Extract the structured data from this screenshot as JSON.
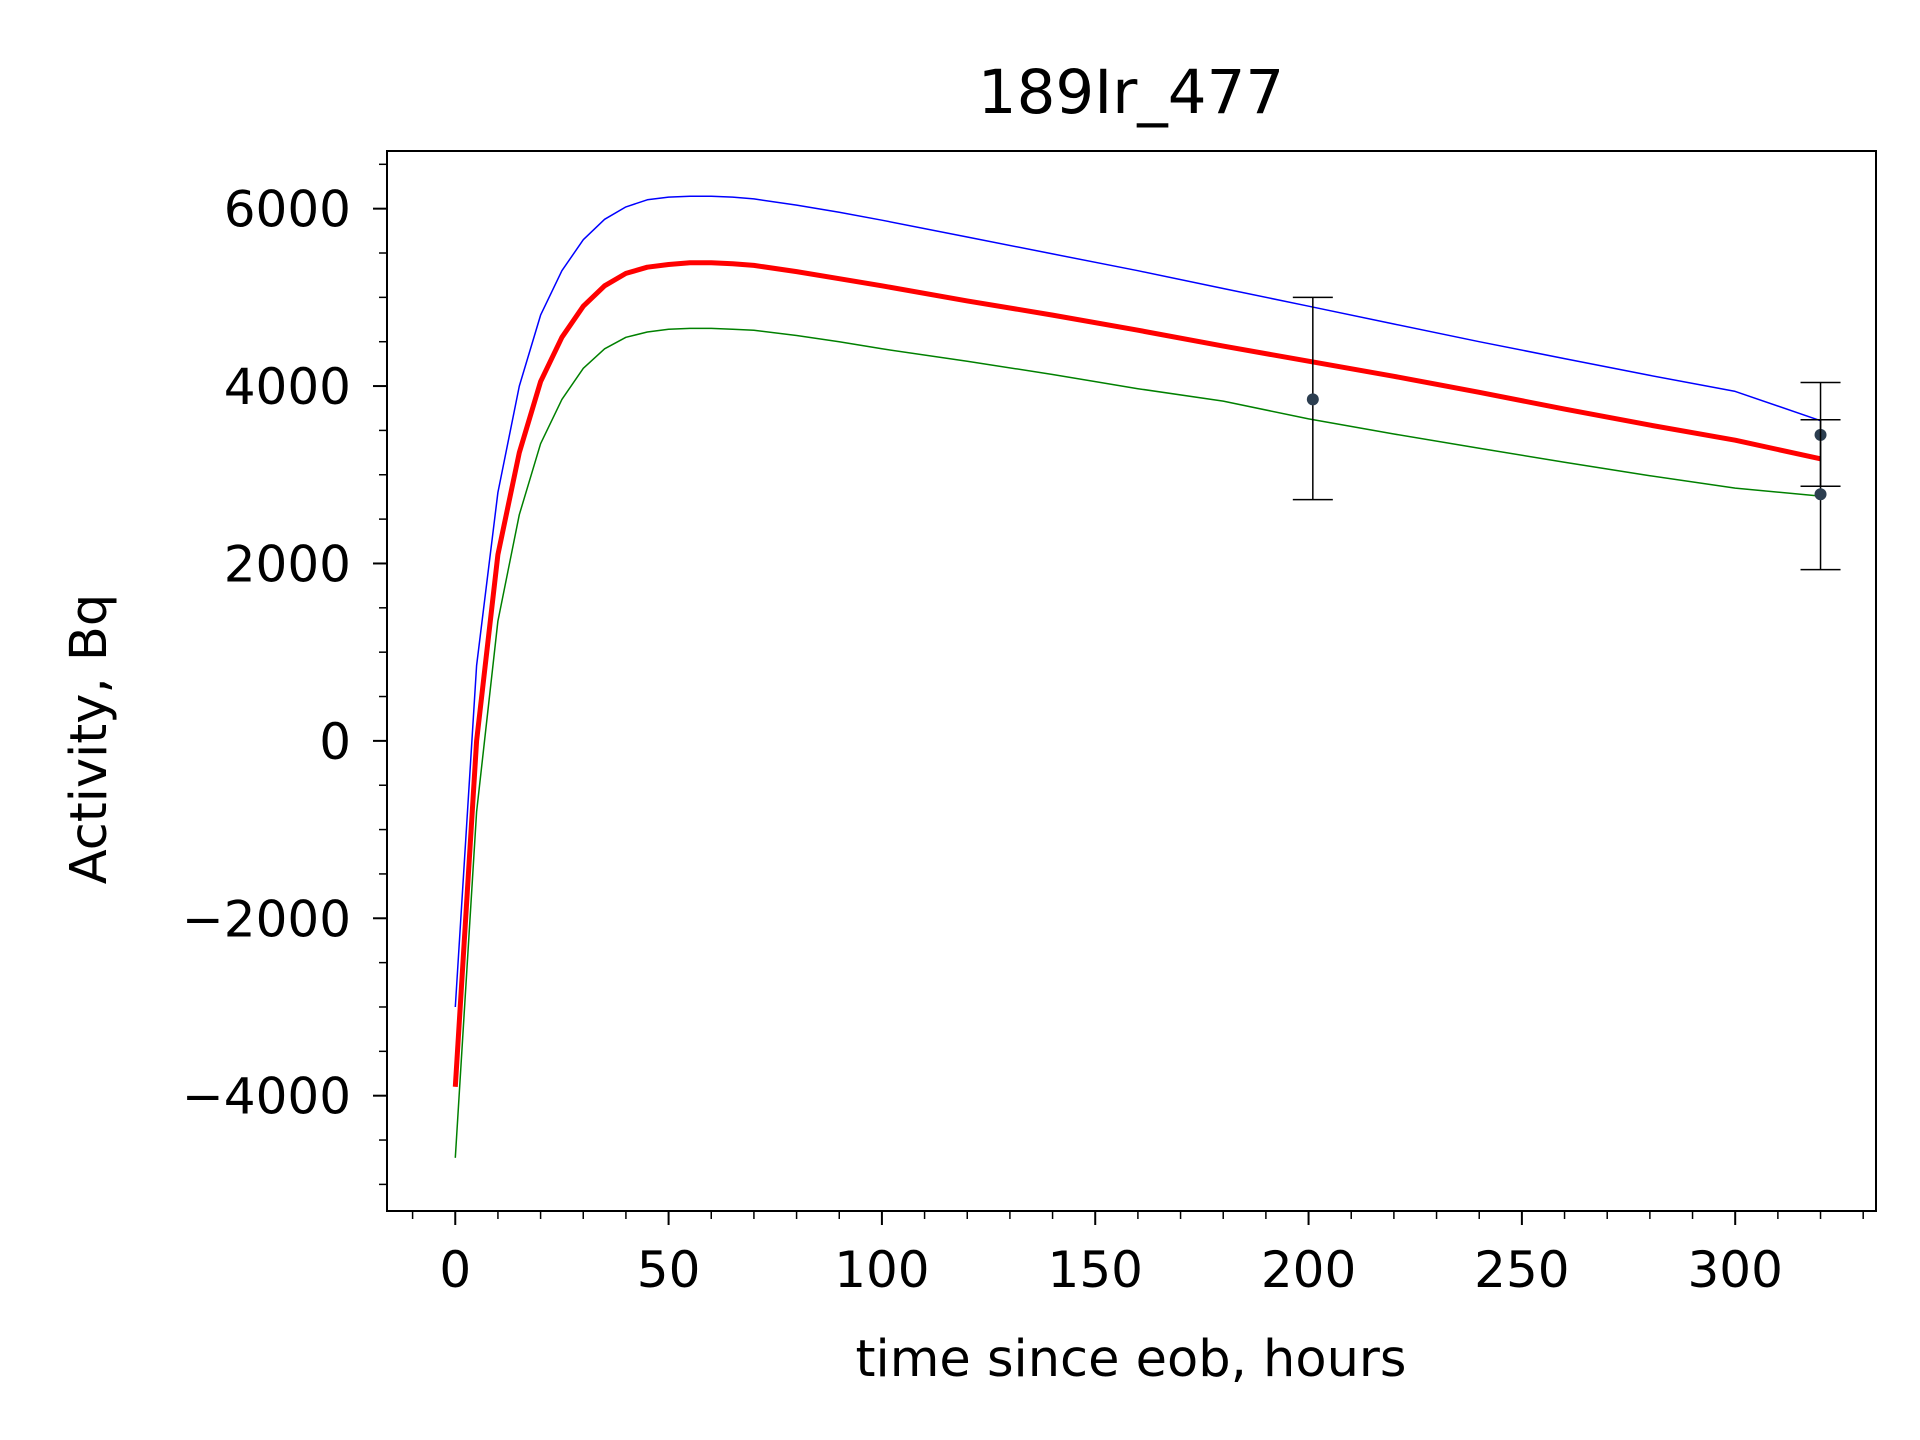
{
  "chart_data": {
    "type": "line",
    "title": "189Ir_477",
    "xlabel": "time since eob, hours",
    "ylabel": "Activity, Bq",
    "xlim": [
      -16,
      333
    ],
    "ylim": [
      -5300,
      6650
    ],
    "xticks": [
      0,
      50,
      100,
      150,
      200,
      250,
      300
    ],
    "xtick_labels": [
      "0",
      "50",
      "100",
      "150",
      "200",
      "250",
      "300"
    ],
    "yticks": [
      -4000,
      -2000,
      0,
      2000,
      4000,
      6000
    ],
    "ytick_labels": [
      "−4000",
      "−2000",
      "0",
      "2000",
      "4000",
      "6000"
    ],
    "grid": false,
    "legend": "none",
    "series": [
      {
        "role": "upper",
        "color": "#0000ff",
        "x": [
          0,
          5,
          10,
          15,
          20,
          25,
          30,
          35,
          40,
          45,
          50,
          55,
          60,
          65,
          70,
          80,
          90,
          100,
          120,
          140,
          160,
          180,
          200,
          220,
          240,
          260,
          280,
          300,
          320
        ],
        "y": [
          -3000,
          850,
          2800,
          4000,
          4800,
          5300,
          5650,
          5880,
          6020,
          6100,
          6130,
          6140,
          6140,
          6130,
          6110,
          6040,
          5960,
          5870,
          5680,
          5490,
          5300,
          5100,
          4900,
          4700,
          4500,
          4310,
          4120,
          3940,
          3610
        ]
      },
      {
        "role": "fit",
        "color": "#ff0000",
        "x": [
          0,
          5,
          10,
          15,
          20,
          25,
          30,
          35,
          40,
          45,
          50,
          55,
          60,
          65,
          70,
          80,
          90,
          100,
          120,
          140,
          160,
          180,
          200,
          220,
          240,
          260,
          280,
          300,
          320
        ],
        "y": [
          -3900,
          0,
          2100,
          3250,
          4050,
          4550,
          4900,
          5130,
          5270,
          5340,
          5370,
          5390,
          5390,
          5380,
          5360,
          5290,
          5210,
          5130,
          4960,
          4800,
          4630,
          4450,
          4280,
          4110,
          3930,
          3740,
          3560,
          3390,
          3180
        ]
      },
      {
        "role": "lower",
        "color": "#008000",
        "x": [
          0,
          5,
          10,
          15,
          20,
          25,
          30,
          35,
          40,
          45,
          50,
          55,
          60,
          65,
          70,
          80,
          90,
          100,
          120,
          140,
          160,
          180,
          200,
          220,
          240,
          260,
          280,
          300,
          320
        ],
        "y": [
          -4700,
          -800,
          1350,
          2550,
          3350,
          3850,
          4200,
          4420,
          4550,
          4610,
          4640,
          4650,
          4650,
          4640,
          4630,
          4570,
          4500,
          4420,
          4280,
          4130,
          3970,
          3830,
          3630,
          3460,
          3300,
          3140,
          2990,
          2850,
          2760
        ]
      }
    ],
    "points": {
      "color": "#2c3e50",
      "items": [
        {
          "x": 201,
          "y": 3850,
          "ylow": 2720,
          "yhigh": 5000
        },
        {
          "x": 320,
          "y": 3450,
          "ylow": 2870,
          "yhigh": 4040
        },
        {
          "x": 320,
          "y": 2780,
          "ylow": 1930,
          "yhigh": 3620
        }
      ]
    }
  }
}
